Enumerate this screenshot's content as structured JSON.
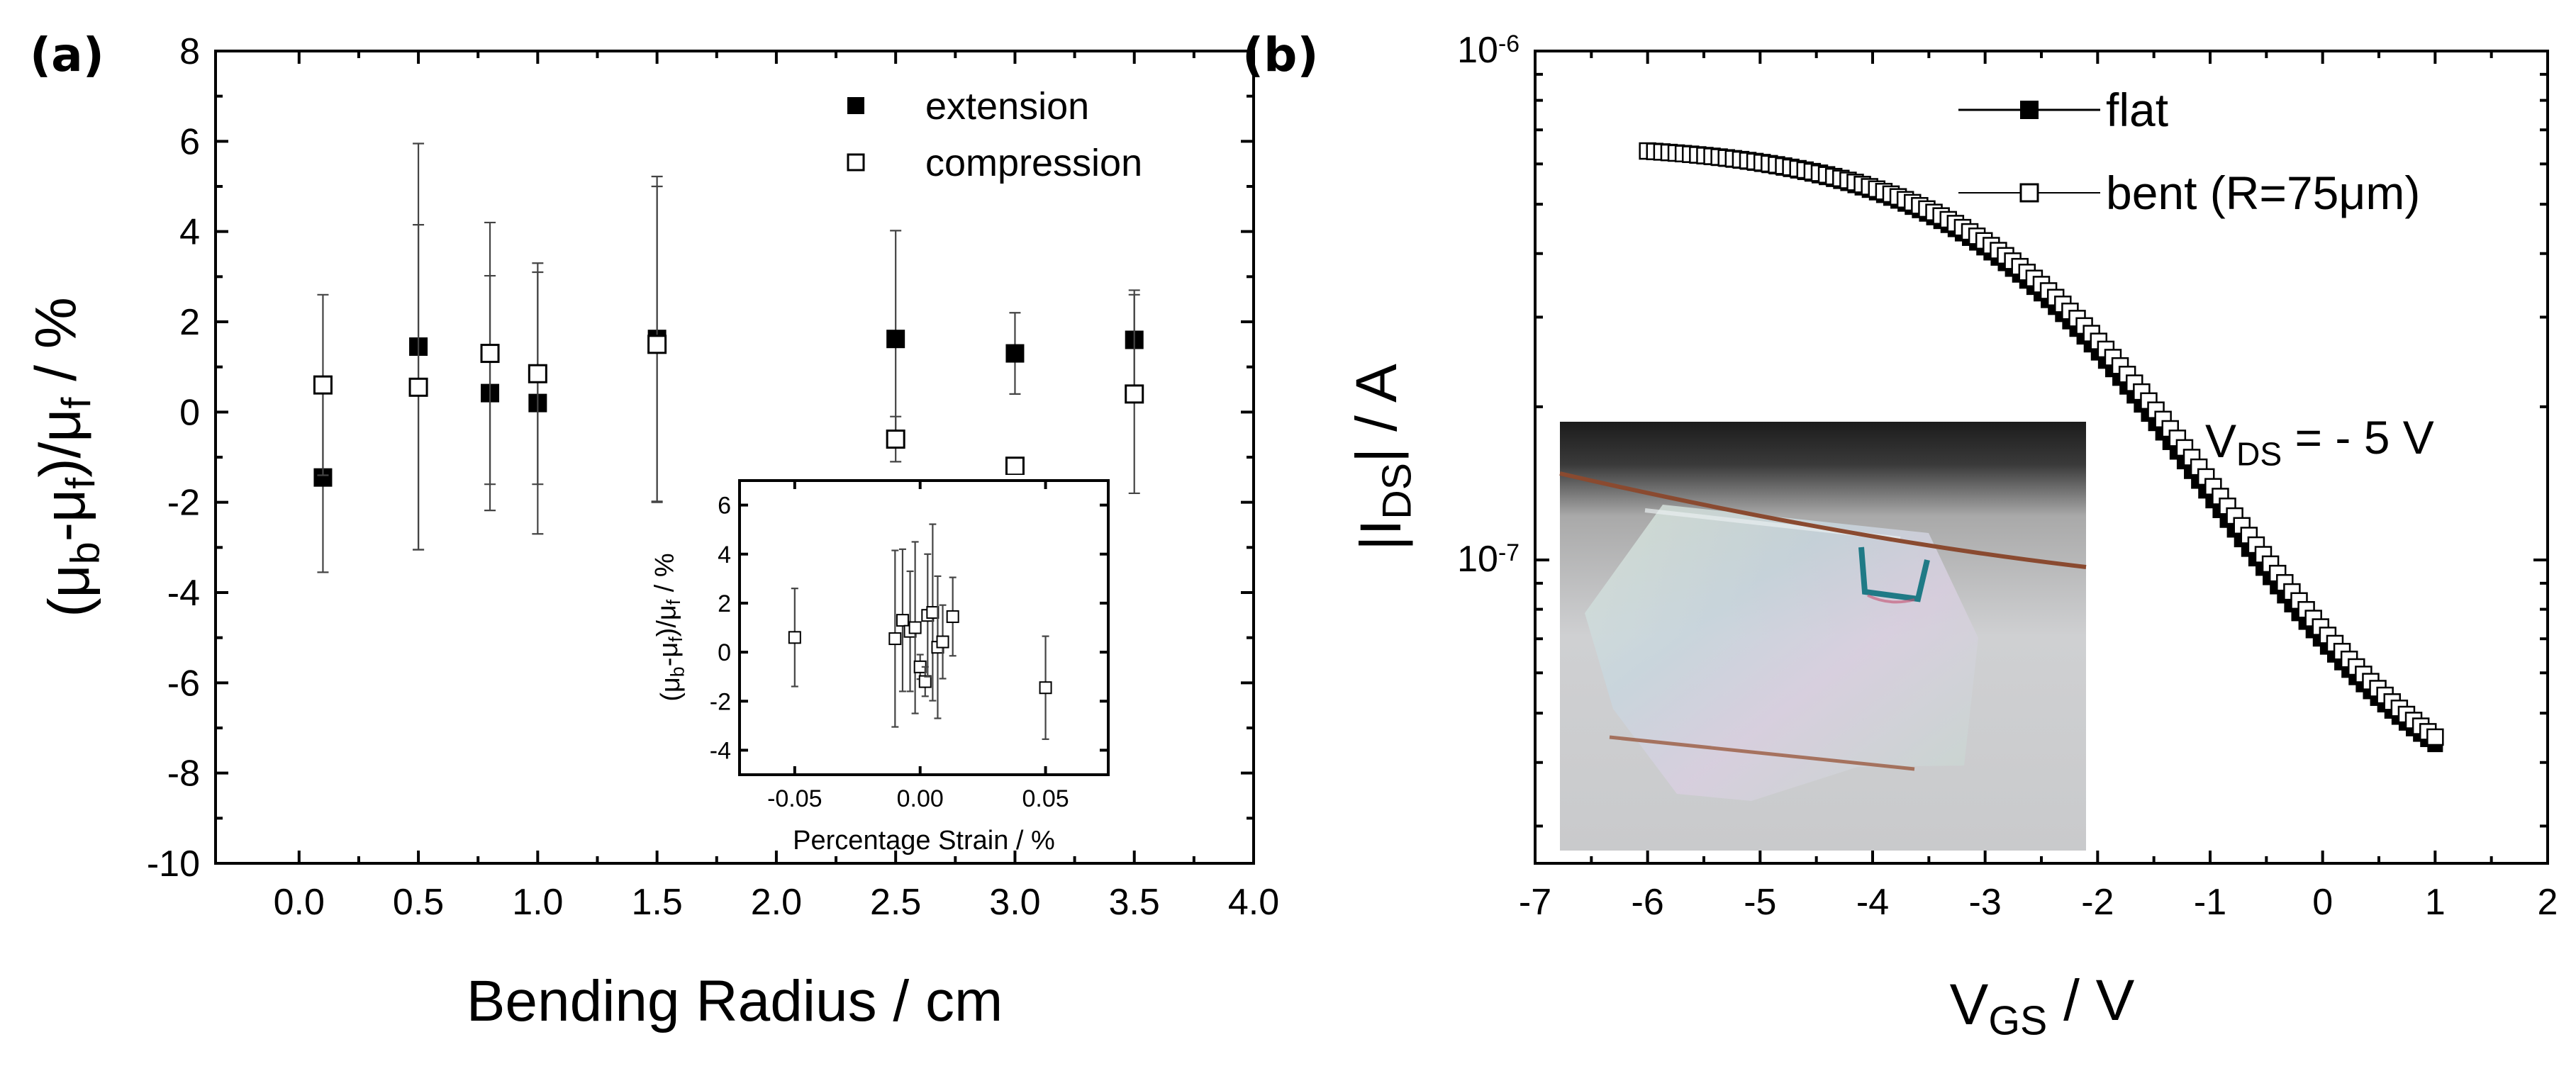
{
  "chart_data": [
    {
      "panel_label": "(a)",
      "type": "scatter",
      "ylabel": "(μb-μf)/μf / %",
      "xlabel": "Bending Radius / cm",
      "xlim": [
        -0.35,
        4.0
      ],
      "ylim": [
        -10,
        8
      ],
      "xticks": [
        "0.0",
        "0.5",
        "1.0",
        "1.5",
        "2.0",
        "2.5",
        "3.0",
        "3.5",
        "4.0"
      ],
      "yticks": [
        "-10",
        "-8",
        "-6",
        "-4",
        "-2",
        "0",
        "2",
        "4",
        "6",
        "8"
      ],
      "legend_position": "top-right",
      "series": [
        {
          "name": "extension",
          "marker": "filled-square",
          "points": [
            {
              "x": 0.1,
              "y": -1.45,
              "err": 2.1
            },
            {
              "x": 0.5,
              "y": 1.45,
              "err": 4.5
            },
            {
              "x": 0.8,
              "y": 0.42,
              "err": 2.6
            },
            {
              "x": 1.0,
              "y": 0.2,
              "err": 2.9
            },
            {
              "x": 1.5,
              "y": 1.62,
              "err": 3.6
            },
            {
              "x": 2.5,
              "y": 1.62,
              "err": 2.4
            },
            {
              "x": 3.0,
              "y": 1.3,
              "err": 0.9
            },
            {
              "x": 3.5,
              "y": 1.6,
              "err": 1.1
            }
          ]
        },
        {
          "name": "compression",
          "marker": "open-square",
          "points": [
            {
              "x": 0.1,
              "y": 0.6,
              "err": 2.0
            },
            {
              "x": 0.5,
              "y": 0.55,
              "err": 3.6
            },
            {
              "x": 0.8,
              "y": 1.3,
              "err": 2.9
            },
            {
              "x": 1.0,
              "y": 0.85,
              "err": 2.45
            },
            {
              "x": 1.5,
              "y": 1.5,
              "err": 3.5
            },
            {
              "x": 2.5,
              "y": -0.6,
              "err": 0.5
            },
            {
              "x": 3.0,
              "y": -1.2,
              "err": 0.0
            },
            {
              "x": 3.5,
              "y": 0.4,
              "err": 2.2
            }
          ]
        }
      ],
      "inset": {
        "type": "scatter",
        "xlabel": "Percentage Strain / %",
        "ylabel": "(μb-μf)/μf / %",
        "xlim": [
          -0.072,
          0.075
        ],
        "ylim": [
          -5,
          7
        ],
        "xticks": [
          "-0.05",
          "0.00",
          "0.05"
        ],
        "yticks": [
          "-4",
          "-2",
          "0",
          "2",
          "4",
          "6"
        ],
        "points": [
          {
            "x": -0.05,
            "y": 0.6,
            "err": 2.0
          },
          {
            "x": -0.01,
            "y": 0.55,
            "err": 3.6
          },
          {
            "x": -0.007,
            "y": 1.3,
            "err": 2.9
          },
          {
            "x": -0.004,
            "y": 0.85,
            "err": 2.45
          },
          {
            "x": -0.002,
            "y": 1.0,
            "err": 3.5
          },
          {
            "x": 0.0,
            "y": -0.6,
            "err": 0.5
          },
          {
            "x": 0.002,
            "y": -1.2,
            "err": 0.6
          },
          {
            "x": 0.003,
            "y": 1.5,
            "err": 2.5
          },
          {
            "x": 0.005,
            "y": 1.62,
            "err": 3.6
          },
          {
            "x": 0.007,
            "y": 0.2,
            "err": 2.9
          },
          {
            "x": 0.009,
            "y": 0.42,
            "err": 1.5
          },
          {
            "x": 0.013,
            "y": 1.45,
            "err": 1.6
          },
          {
            "x": 0.05,
            "y": -1.45,
            "err": 2.1
          }
        ]
      }
    },
    {
      "panel_label": "(b)",
      "type": "line",
      "ylabel": "|IDS| / A",
      "xlabel": "VGS / V",
      "yscale": "log",
      "xlim": [
        -7,
        2
      ],
      "ylim": [
        1e-07,
        1e-06
      ],
      "xticks": [
        "-7",
        "-6",
        "-5",
        "-4",
        "-3",
        "-2",
        "-1",
        "0",
        "1",
        "2"
      ],
      "yticks": [
        "10-6",
        "10-7"
      ],
      "legend_position": "top-right",
      "annotation": "VDS = - 5 V",
      "inset_image": "photo of bent flexible transistor film",
      "series": [
        {
          "name": "flat",
          "marker": "filled-square",
          "x_range": [
            -6,
            1
          ]
        },
        {
          "name": "bent (R=75μm)",
          "marker": "open-square",
          "x_range": [
            -6,
            1
          ]
        }
      ]
    }
  ]
}
